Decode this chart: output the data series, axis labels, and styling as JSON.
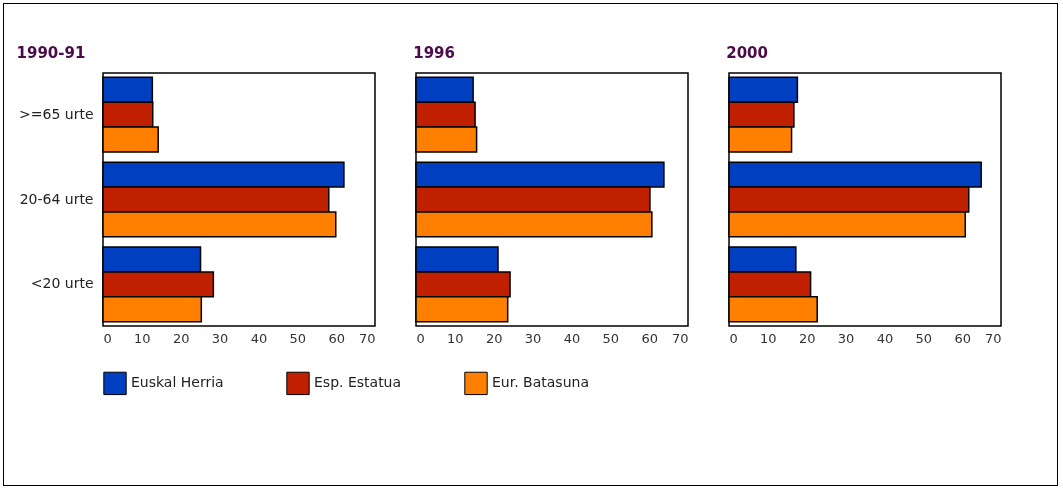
{
  "chart_data": [
    {
      "type": "bar",
      "orientation": "horizontal",
      "title": "1990-91",
      "categories": [
        ">=65 urte",
        "20-64 urte",
        "<20 urte"
      ],
      "series": [
        {
          "name": "Euskal Herria",
          "color": "#0040c0",
          "values": [
            12.7,
            62,
            25.1
          ]
        },
        {
          "name": "Esp. Estatua",
          "color": "#c02000",
          "values": [
            12.8,
            58.1,
            28.4
          ]
        },
        {
          "name": "Eur. Batasuna",
          "color": "#ff8000",
          "values": [
            14.2,
            59.9,
            25.3
          ]
        }
      ],
      "xlim": [
        0,
        70
      ],
      "xticks": [
        0,
        10,
        20,
        30,
        40,
        50,
        60,
        70
      ],
      "grid": false,
      "legend": "bottom"
    },
    {
      "type": "bar",
      "orientation": "horizontal",
      "title": "1996",
      "categories": [
        ">=65 urte",
        "20-64 urte",
        "<20 urte"
      ],
      "series": [
        {
          "name": "Euskal Herria",
          "color": "#0040c0",
          "values": [
            14.7,
            63.8,
            21.1
          ]
        },
        {
          "name": "Esp. Estatua",
          "color": "#c02000",
          "values": [
            15.2,
            60.2,
            24.2
          ]
        },
        {
          "name": "Eur. Batasuna",
          "color": "#ff8000",
          "values": [
            15.6,
            60.7,
            23.6
          ]
        }
      ],
      "xlim": [
        0,
        70
      ],
      "xticks": [
        0,
        10,
        20,
        30,
        40,
        50,
        60,
        70
      ],
      "grid": false,
      "tick_labels": "x"
    },
    {
      "type": "bar",
      "orientation": "horizontal",
      "title": "2000",
      "categories": [
        ">=65 urte",
        "20-64 urte",
        "<20 urte"
      ],
      "series": [
        {
          "name": "Euskal Herria",
          "color": "#0040c0",
          "values": [
            17.6,
            64.9,
            17.2
          ]
        },
        {
          "name": "Esp. Estatua",
          "color": "#c02000",
          "values": [
            16.7,
            61.7,
            21
          ]
        },
        {
          "name": "Eur. Batasuna",
          "color": "#ff8000",
          "values": [
            16.1,
            60.8,
            22.7
          ]
        }
      ],
      "xlim": [
        0,
        70
      ],
      "xticks": [
        0,
        10,
        20,
        30,
        40,
        50,
        60,
        70
      ],
      "grid": false,
      "tick_labels": "x"
    }
  ]
}
